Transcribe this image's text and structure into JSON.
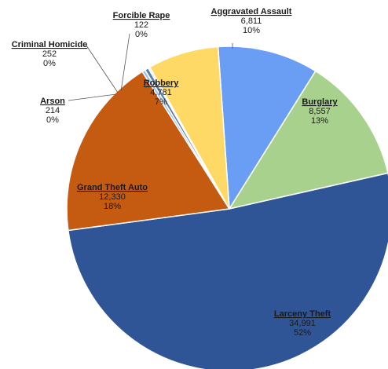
{
  "chart_data": {
    "type": "pie",
    "title": "",
    "start_angle_deg": -4,
    "direction": "clockwise",
    "slices": [
      {
        "name": "Aggravated Assault",
        "value": 6811,
        "value_label": "6,811",
        "percent_label": "10%",
        "color": "#6a9ef5"
      },
      {
        "name": "Burglary",
        "value": 8557,
        "value_label": "8,557",
        "percent_label": "13%",
        "color": "#a9d18e"
      },
      {
        "name": "Larceny Theft",
        "value": 34991,
        "value_label": "34,991",
        "percent_label": "52%",
        "color": "#2f5597"
      },
      {
        "name": "Grand Theft Auto",
        "value": 12330,
        "value_label": "12,330",
        "percent_label": "18%",
        "color": "#c55a11"
      },
      {
        "name": "Arson",
        "value": 214,
        "value_label": "214",
        "percent_label": "0%",
        "color": "#9dc3e6"
      },
      {
        "name": "Criminal Homicide",
        "value": 252,
        "value_label": "252",
        "percent_label": "0%",
        "color": "#5b7fa8"
      },
      {
        "name": "Forcible Rape",
        "value": 122,
        "value_label": "122",
        "percent_label": "0%",
        "color": "#e7e6e6"
      },
      {
        "name": "Robbery",
        "value": 4781,
        "value_label": "4,781",
        "percent_label": "7%",
        "color": "#ffd966"
      }
    ]
  }
}
